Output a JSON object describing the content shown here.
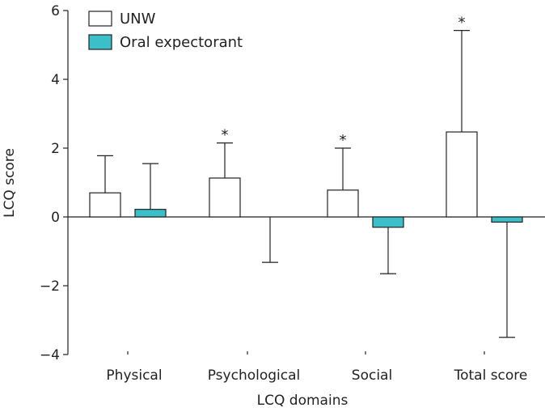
{
  "chart_data": {
    "type": "bar",
    "xlabel": "LCQ domains",
    "ylabel": "LCQ score",
    "ylim": [
      -4,
      6
    ],
    "yticks": [
      -4,
      -2,
      0,
      2,
      4,
      6
    ],
    "ytick_labels": [
      "−4",
      "−2",
      "0",
      "2",
      "4",
      "6"
    ],
    "categories": [
      "Physical",
      "Psychological",
      "Social",
      "Total score"
    ],
    "grid": false,
    "legend_position": "top-left",
    "series": [
      {
        "name": "UNW",
        "color": "#ffffff",
        "values": [
          0.7,
          1.13,
          0.78,
          2.47
        ],
        "error_upper": [
          1.78,
          2.15,
          2.0,
          5.42
        ],
        "significance": [
          "",
          "*",
          "*",
          "*"
        ]
      },
      {
        "name": "Oral expectorant",
        "color": "#3bbfc9",
        "values": [
          0.22,
          0.0,
          -0.3,
          -0.15
        ],
        "error_upper": [
          1.55,
          null,
          null,
          null
        ],
        "error_lower": [
          null,
          -1.32,
          -1.65,
          -3.5
        ],
        "significance": [
          "",
          "",
          "",
          ""
        ]
      }
    ]
  }
}
